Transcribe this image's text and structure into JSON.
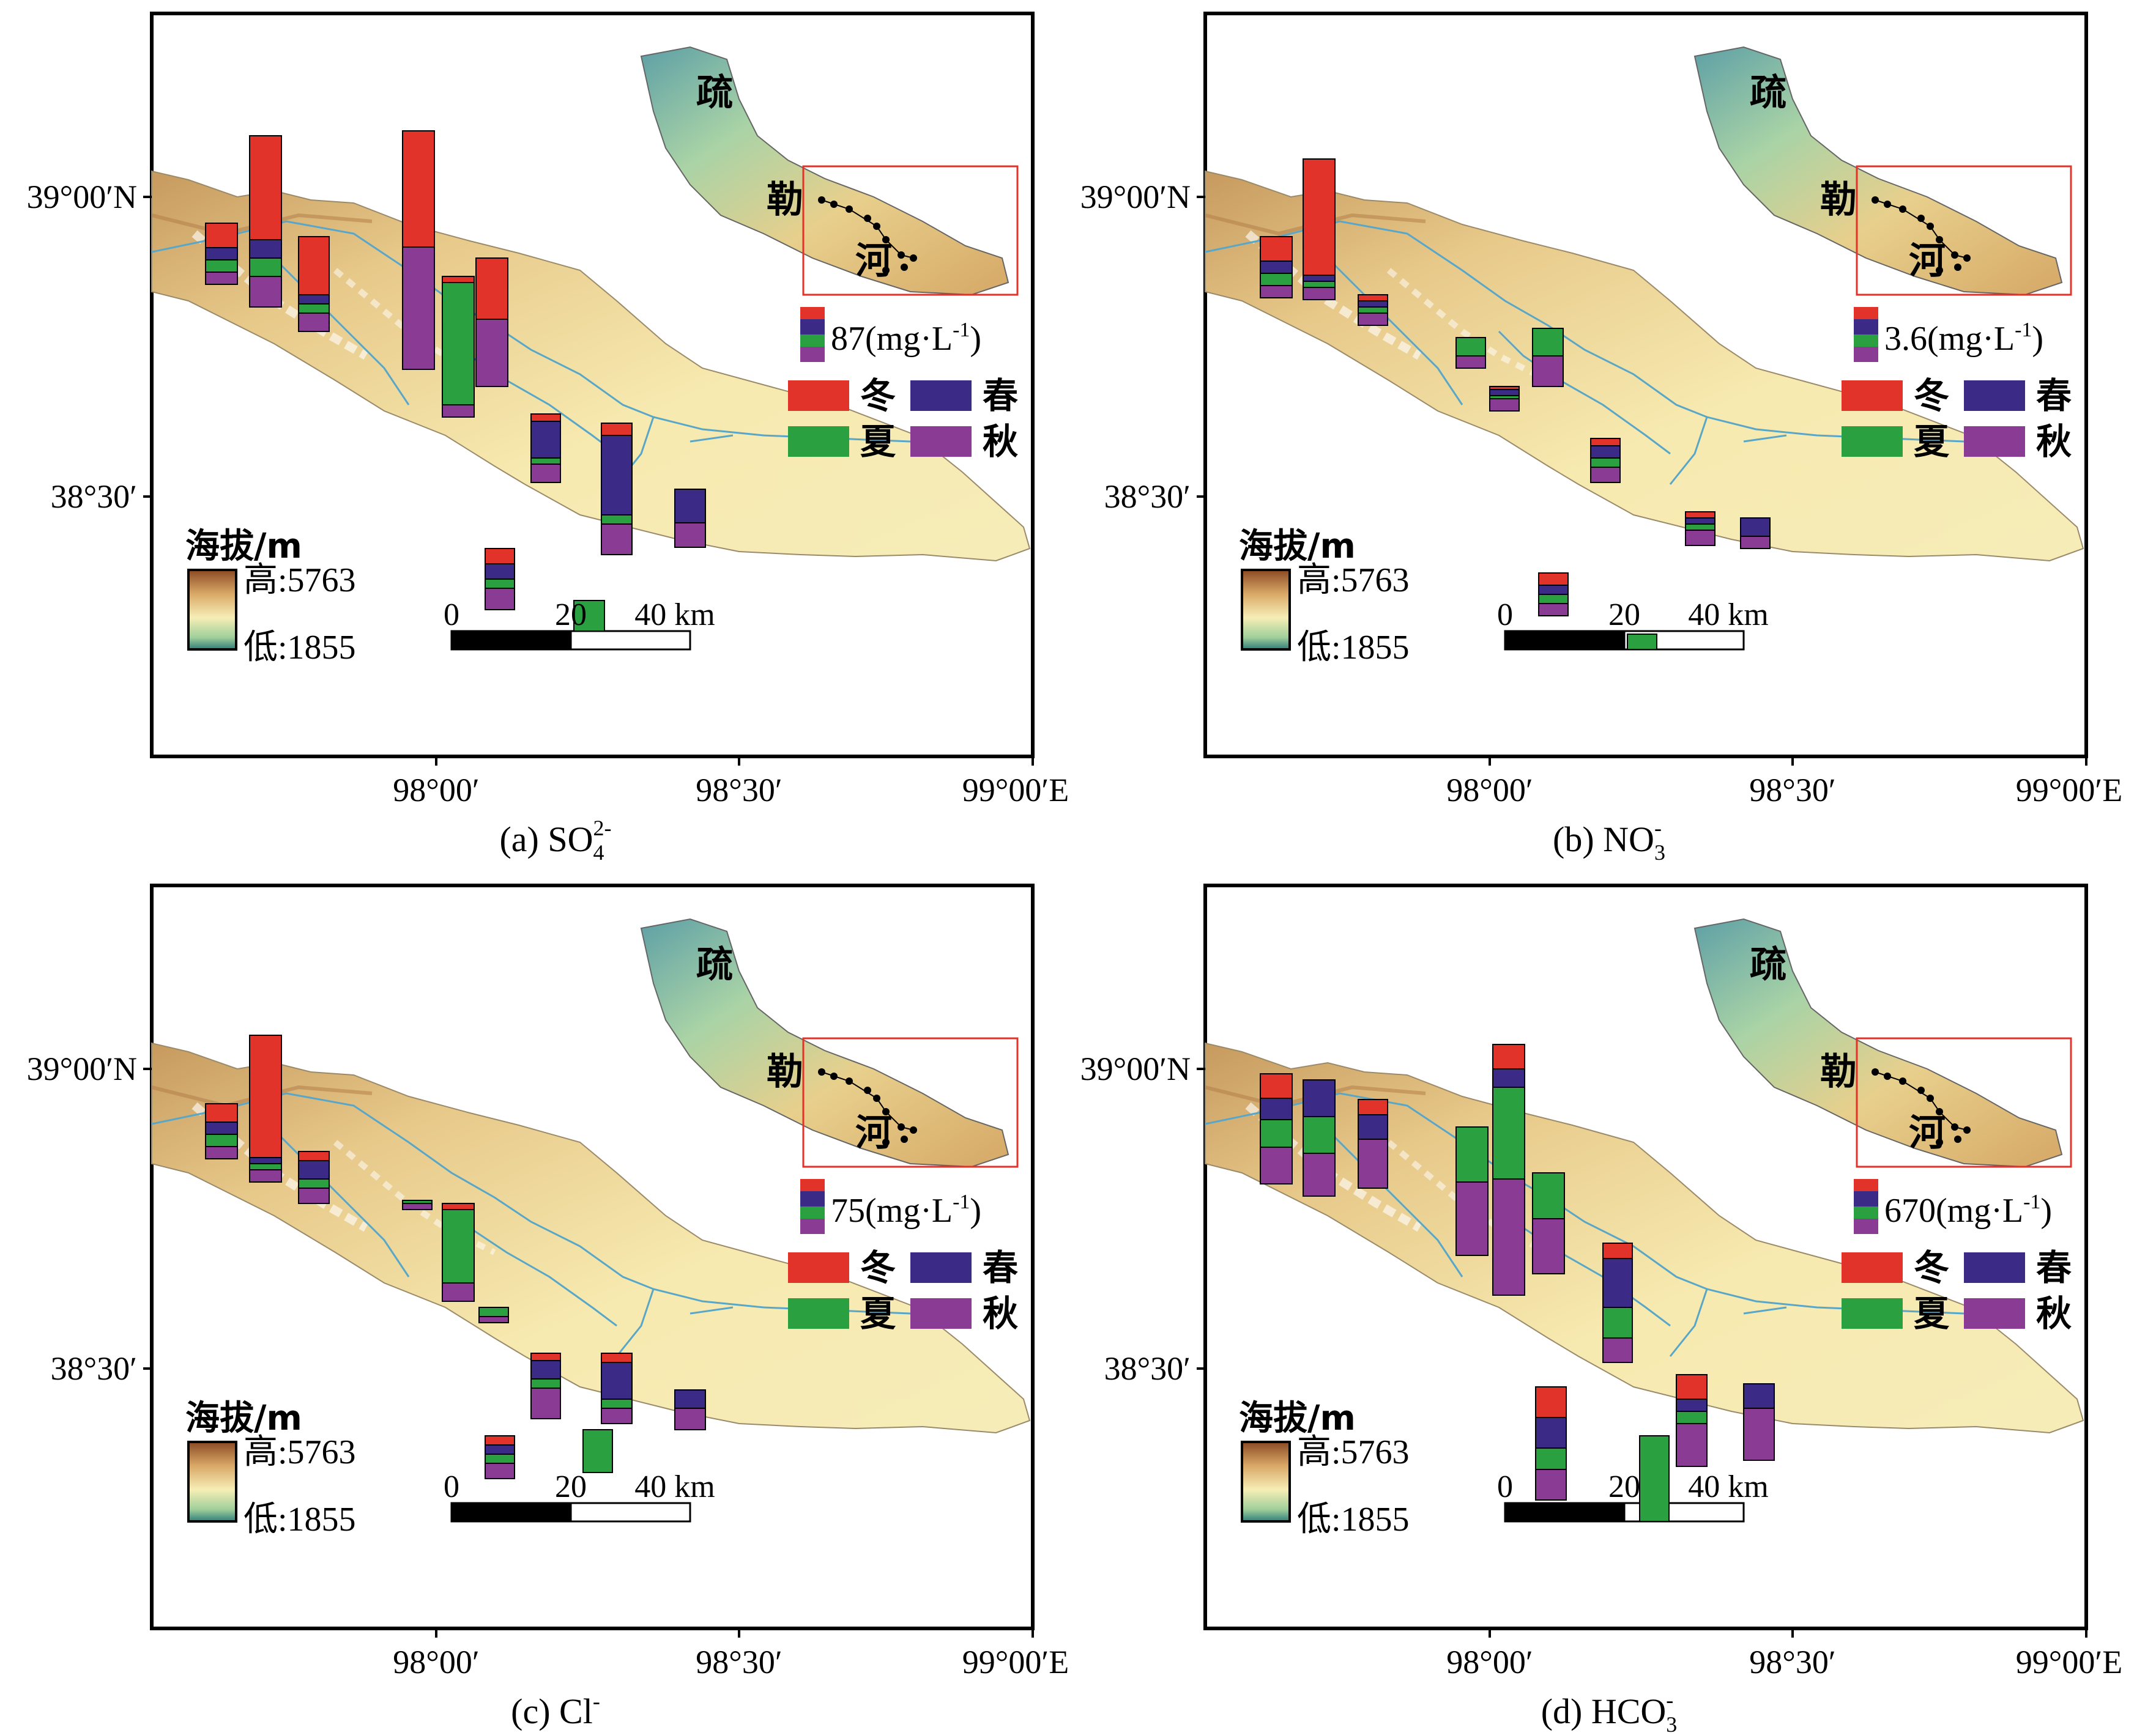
{
  "legend": {
    "elevation_title": "海拔/m",
    "high_label": "高:5763",
    "low_label": "低:1855",
    "seasons": [
      "冬",
      "春",
      "夏",
      "秋"
    ],
    "season_colors": {
      "冬": "#e2332a",
      "春": "#3b2a86",
      "夏": "#2aa040",
      "秋": "#8a3c95"
    },
    "scalebar": {
      "ticks": [
        "0",
        "20",
        "40 km"
      ]
    }
  },
  "inset": {
    "chars": [
      "疏",
      "勒",
      "河"
    ]
  },
  "axes": {
    "y_ticks": [
      "39°00′N",
      "38°30′"
    ],
    "x_ticks": [
      "98°00′",
      "98°30′",
      "99°00′E"
    ]
  },
  "panels": [
    {
      "id": "a",
      "caption": "(a) SO",
      "ion": "SO42-",
      "sup": "2-",
      "sub": "4",
      "unit_value": "87(mg·L",
      "unit_exp": "-1",
      "unit_close": ")"
    },
    {
      "id": "b",
      "caption": "(b) NO",
      "ion": "NO3-",
      "sup": "-",
      "sub": "3",
      "unit_value": "3.6(mg·L",
      "unit_exp": "-1",
      "unit_close": ")"
    },
    {
      "id": "c",
      "caption": "(c) Cl",
      "ion": "Cl-",
      "sup": "-",
      "sub": "",
      "unit_value": "75(mg·L",
      "unit_exp": "-1",
      "unit_close": ")"
    },
    {
      "id": "d",
      "caption": "(d) HCO",
      "ion": "HCO3-",
      "sup": "-",
      "sub": "3",
      "unit_value": "670(mg·L",
      "unit_exp": "-1",
      "unit_close": ")"
    }
  ]
}
